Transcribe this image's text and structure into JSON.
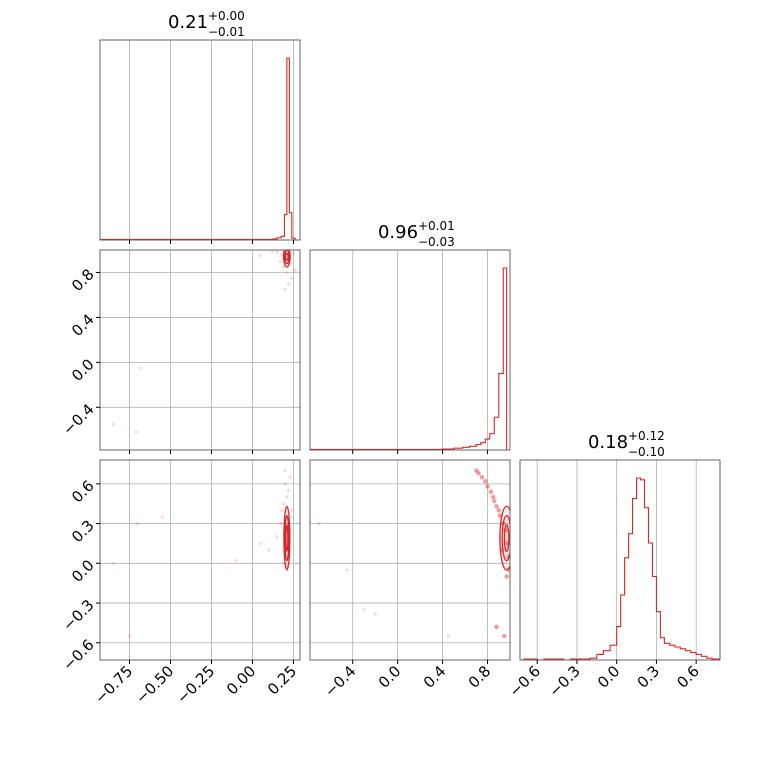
{
  "colors": {
    "series": "#d62728",
    "grid": "#b0b0b0",
    "frame": "#000000"
  },
  "chart_data": {
    "type": "corner",
    "grid": true,
    "parameters": [
      {
        "title": "0.21",
        "title_plus": "+0.00",
        "title_minus": "−0.01",
        "range": [
          -0.93,
          0.29
        ],
        "ticks": [
          -0.75,
          -0.5,
          -0.25,
          0.0,
          0.25
        ],
        "tick_labels": [
          "−0.75",
          "−0.50",
          "−0.25",
          "0.00",
          "0.25"
        ]
      },
      {
        "title": "0.96",
        "title_plus": "+0.01",
        "title_minus": "−0.03",
        "range": [
          -0.78,
          1.0
        ],
        "ticks": [
          -0.4,
          0.0,
          0.4,
          0.8
        ],
        "tick_labels": [
          "−0.4",
          "0.0",
          "0.4",
          "0.8"
        ]
      },
      {
        "title": "0.18",
        "title_plus": "+0.12",
        "title_minus": "−0.10",
        "range": [
          -0.73,
          0.78
        ],
        "ticks": [
          -0.6,
          -0.3,
          0.0,
          0.3,
          0.6
        ],
        "tick_labels": [
          "−0.6",
          "−0.3",
          "0.0",
          "0.3",
          "0.6"
        ]
      }
    ],
    "histograms": [
      {
        "edges": [
          0.1,
          0.125,
          0.15,
          0.175,
          0.195,
          0.21,
          0.225,
          0.24,
          0.26,
          0.29
        ],
        "heights": [
          0.003,
          0.006,
          0.012,
          0.02,
          0.14,
          1.0,
          0.15,
          0.01,
          0.0
        ]
      },
      {
        "edges": [
          0.4,
          0.5,
          0.58,
          0.64,
          0.7,
          0.74,
          0.78,
          0.82,
          0.86,
          0.9,
          0.94,
          0.97,
          1.0
        ],
        "heights": [
          0.005,
          0.01,
          0.015,
          0.02,
          0.03,
          0.04,
          0.06,
          0.09,
          0.18,
          0.42,
          1.0,
          0.0
        ]
      },
      {
        "edges": [
          -0.73,
          -0.7,
          -0.65,
          -0.6,
          -0.55,
          -0.5,
          -0.45,
          -0.4,
          -0.35,
          -0.3,
          -0.25,
          -0.2,
          -0.15,
          -0.1,
          -0.05,
          0.0,
          0.03,
          0.06,
          0.09,
          0.12,
          0.15,
          0.18,
          0.21,
          0.24,
          0.27,
          0.3,
          0.33,
          0.36,
          0.4,
          0.44,
          0.48,
          0.52,
          0.56,
          0.6,
          0.64,
          0.68,
          0.72,
          0.78
        ],
        "heights": [
          0.0,
          0.005,
          0.005,
          0.0,
          0.005,
          0.005,
          0.005,
          0.0,
          0.005,
          0.005,
          0.005,
          0.01,
          0.03,
          0.05,
          0.08,
          0.18,
          0.35,
          0.55,
          0.68,
          0.87,
          0.98,
          0.97,
          0.82,
          0.63,
          0.45,
          0.26,
          0.12,
          0.09,
          0.08,
          0.07,
          0.06,
          0.05,
          0.04,
          0.03,
          0.02,
          0.01,
          0.005
        ]
      }
    ],
    "pairs": [
      {
        "row": 1,
        "col": 0,
        "center": [
          0.21,
          0.94
        ],
        "contour_radii": [
          [
            0.008,
            0.03
          ],
          [
            0.014,
            0.06
          ],
          [
            0.02,
            0.09
          ]
        ],
        "samples": [
          [
            0.2,
            0.99
          ],
          [
            0.22,
            0.98
          ],
          [
            0.18,
            0.96
          ],
          [
            0.23,
            0.92
          ],
          [
            0.19,
            0.85
          ],
          [
            0.21,
            0.8
          ],
          [
            0.24,
            0.75
          ],
          [
            0.17,
            0.9
          ],
          [
            0.15,
            0.98
          ],
          [
            0.25,
            0.97
          ],
          [
            0.12,
            0.99
          ],
          [
            0.05,
            0.95
          ],
          [
            -0.68,
            -0.05
          ],
          [
            -0.85,
            -0.55
          ],
          [
            -0.71,
            -0.62
          ],
          [
            0.22,
            0.7
          ],
          [
            0.2,
            0.65
          ],
          [
            0.23,
            0.88
          ],
          [
            0.19,
            0.93
          ],
          [
            0.26,
            0.82
          ]
        ]
      },
      {
        "row": 2,
        "col": 0,
        "center": [
          0.21,
          0.19
        ],
        "contour_radii": [
          [
            0.006,
            0.1
          ],
          [
            0.012,
            0.17
          ],
          [
            0.018,
            0.24
          ]
        ],
        "samples": [
          [
            0.2,
            0.6
          ],
          [
            0.22,
            0.55
          ],
          [
            0.21,
            0.5
          ],
          [
            0.19,
            0.45
          ],
          [
            0.23,
            0.65
          ],
          [
            0.2,
            0.7
          ],
          [
            0.18,
            0.4
          ],
          [
            0.24,
            0.35
          ],
          [
            0.22,
            0.05
          ],
          [
            0.21,
            -0.02
          ],
          [
            0.19,
            0.0
          ],
          [
            0.17,
            0.3
          ],
          [
            0.15,
            0.2
          ],
          [
            0.1,
            0.1
          ],
          [
            0.05,
            0.15
          ],
          [
            -0.1,
            0.02
          ],
          [
            -0.55,
            0.35
          ],
          [
            -0.7,
            0.3
          ],
          [
            -0.85,
            0.0
          ],
          [
            -0.75,
            -0.55
          ],
          [
            0.23,
            0.25
          ],
          [
            0.24,
            0.4
          ]
        ]
      },
      {
        "row": 2,
        "col": 1,
        "center": [
          0.97,
          0.19
        ],
        "contour_radii": [
          [
            0.02,
            0.1
          ],
          [
            0.04,
            0.17
          ],
          [
            0.06,
            0.24
          ]
        ],
        "samples": [
          [
            0.7,
            0.7
          ],
          [
            0.75,
            0.65
          ],
          [
            0.8,
            0.58
          ],
          [
            0.85,
            0.5
          ],
          [
            0.88,
            0.43
          ],
          [
            0.91,
            0.36
          ],
          [
            0.94,
            0.3
          ],
          [
            0.96,
            0.25
          ],
          [
            0.98,
            0.15
          ],
          [
            0.99,
            0.05
          ],
          [
            0.99,
            -0.05
          ],
          [
            0.97,
            -0.1
          ],
          [
            0.93,
            0.1
          ],
          [
            0.72,
            0.68
          ],
          [
            0.78,
            0.62
          ],
          [
            0.83,
            0.54
          ],
          [
            0.86,
            0.47
          ],
          [
            0.9,
            0.4
          ],
          [
            -0.7,
            0.3
          ],
          [
            -0.3,
            -0.35
          ],
          [
            -0.2,
            -0.38
          ],
          [
            0.45,
            -0.55
          ],
          [
            0.88,
            -0.48
          ],
          [
            0.95,
            -0.55
          ],
          [
            -0.45,
            -0.05
          ]
        ]
      }
    ]
  }
}
